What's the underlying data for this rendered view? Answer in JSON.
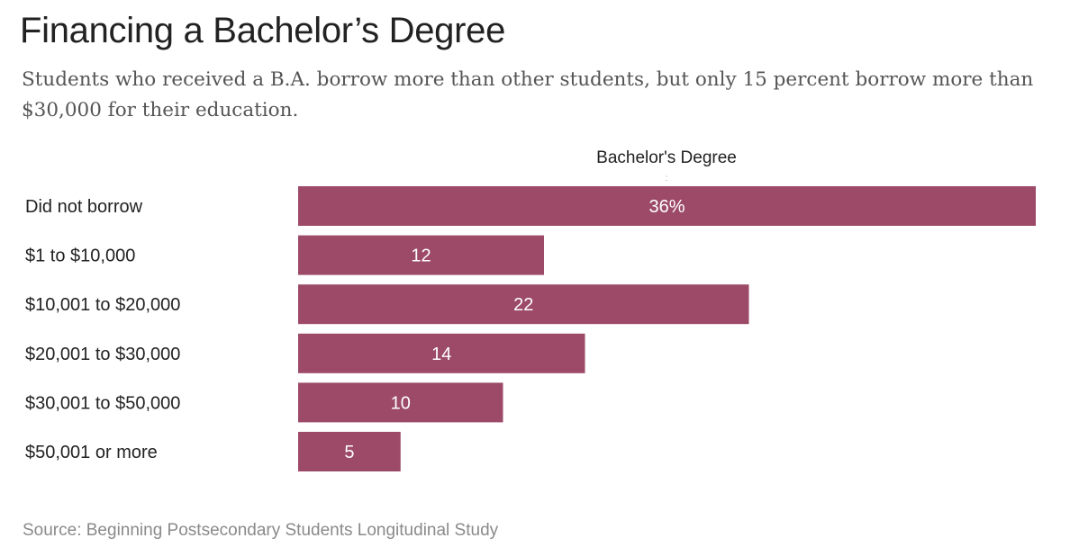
{
  "title": "Financing a Bachelor’s Degree",
  "subtitle": "Students who received a B.A. borrow more than other students, but only 15 percent borrow more than $30,000 for their education.",
  "source": "Source: Beginning Postsecondary Students Longitudinal Study",
  "colors": {
    "bar": "#9c4a68",
    "bar_label": "#ffffff",
    "text": "#222222"
  },
  "chart_data": {
    "type": "bar",
    "orientation": "horizontal",
    "column_header": "Bachelor's Degree",
    "categories": [
      "Did not borrow",
      "$1 to $10,000",
      "$10,001 to $20,000",
      "$20,001 to $30,000",
      "$30,001 to $50,000",
      "$50,001 or more"
    ],
    "values": [
      36,
      12,
      22,
      14,
      10,
      5
    ],
    "value_labels": [
      "36%",
      "12",
      "22",
      "14",
      "10",
      "5"
    ],
    "unit": "percent",
    "xlim": [
      0,
      36
    ]
  }
}
